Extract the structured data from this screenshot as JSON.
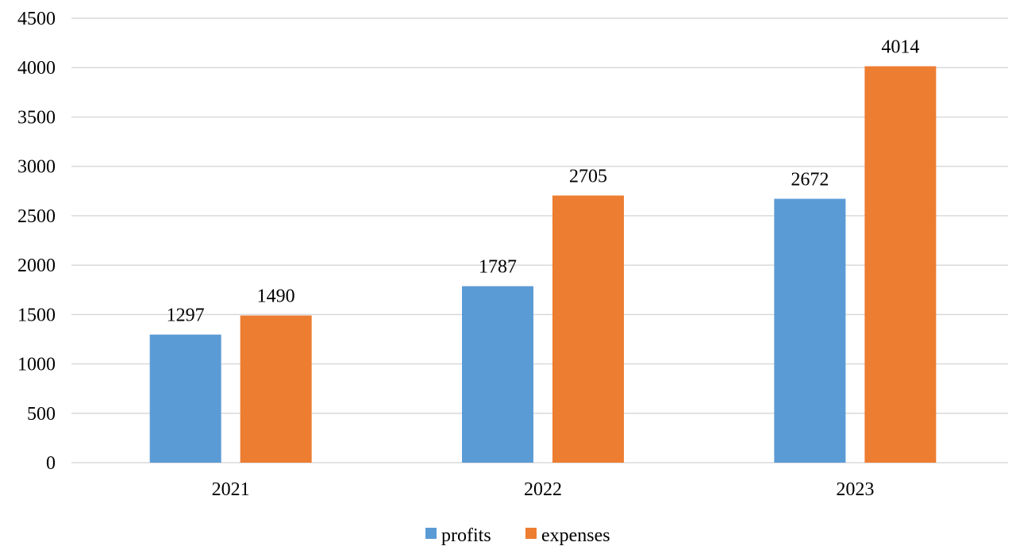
{
  "chart_data": {
    "type": "bar",
    "categories": [
      "2021",
      "2022",
      "2023"
    ],
    "series": [
      {
        "name": "profits",
        "values": [
          1297,
          1787,
          2672
        ],
        "color": "#5B9BD5"
      },
      {
        "name": "expenses",
        "values": [
          1490,
          2705,
          4014
        ],
        "color": "#ED7D31"
      }
    ],
    "ylim": [
      0,
      4500
    ],
    "yticks": [
      0,
      500,
      1000,
      1500,
      2000,
      2500,
      3000,
      3500,
      4000,
      4500
    ],
    "grid": true,
    "legend_position": "bottom",
    "data_labels": true,
    "gridline_color": "#D9D9D9"
  }
}
